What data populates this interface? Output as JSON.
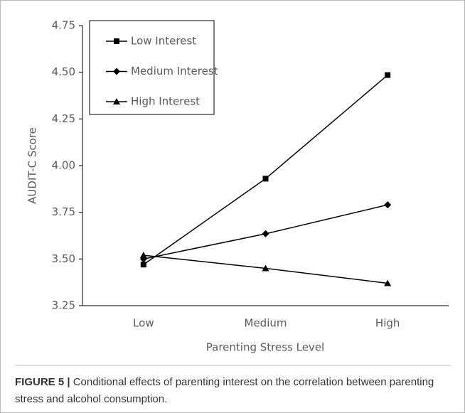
{
  "chart_data": {
    "type": "line",
    "x_label": "Parenting Stress Level",
    "y_label": "AUDIT-C Score",
    "categories": [
      "Low",
      "Medium",
      "High"
    ],
    "series": [
      {
        "name": "Low Interest",
        "color": "#000000",
        "marker": "square",
        "values": [
          3.47,
          3.93,
          4.485
        ]
      },
      {
        "name": "Medium Interest",
        "color": "#000000",
        "marker": "diamond",
        "values": [
          3.5,
          3.635,
          3.79
        ]
      },
      {
        "name": "High Interest",
        "color": "#000000",
        "marker": "triangle",
        "values": [
          3.52,
          3.45,
          3.37
        ]
      }
    ],
    "ylim": [
      3.25,
      4.75
    ],
    "yticks": [
      3.25,
      {
        "value": 3.5,
        "label": "3.50"
      },
      3.75,
      {
        "value": 4,
        "label": "4.00"
      },
      4.25,
      {
        "value": 4.5,
        "label": "4.50"
      },
      4.75
    ],
    "grid": false,
    "legend": "upper left"
  },
  "caption": {
    "label": "FIGURE 5 |",
    "text": "Conditional effects of parenting interest on the correlation between parenting stress and alcohol consumption."
  }
}
